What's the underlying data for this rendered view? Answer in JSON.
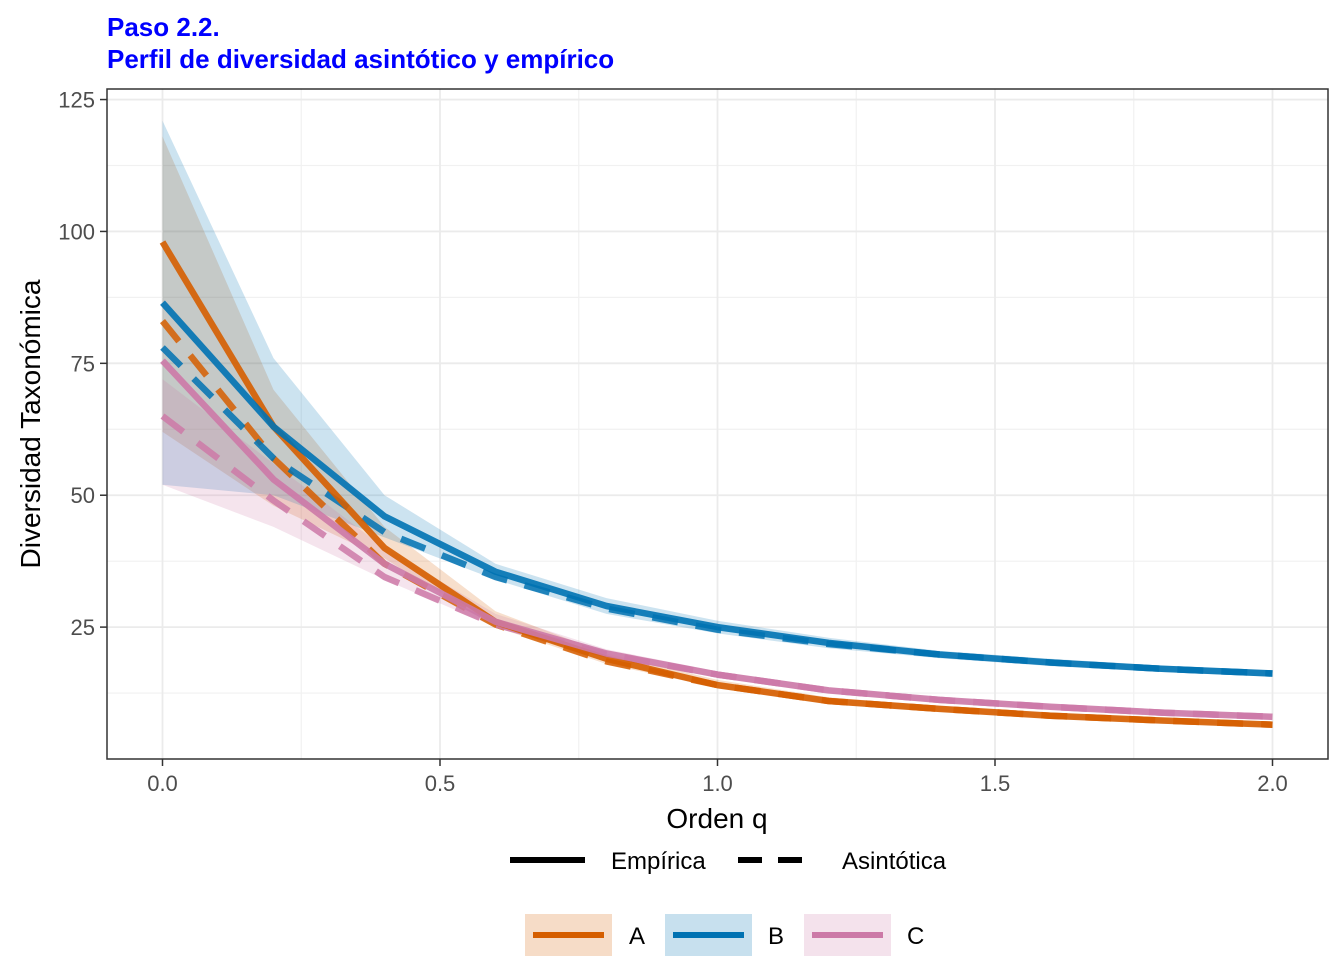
{
  "chart_data": {
    "type": "line",
    "title": "Paso 2.2.",
    "subtitle": "Perfil de diversidad asintótico y empírico",
    "xlabel": "Orden q",
    "ylabel": "Diversidad Taxonómica",
    "xlim": [
      -0.1,
      2.1
    ],
    "ylim": [
      0,
      127
    ],
    "x_ticks": [
      0.0,
      0.5,
      1.0,
      1.5,
      2.0
    ],
    "x_tick_labels": [
      "0.0",
      "0.5",
      "1.0",
      "1.5",
      "2.0"
    ],
    "y_ticks": [
      25,
      50,
      75,
      100,
      125
    ],
    "y_tick_labels": [
      "25",
      "50",
      "75",
      "100",
      "125"
    ],
    "grid": true,
    "legend_linetype": {
      "placement": "bottom",
      "entries": [
        {
          "label": "Empírica",
          "dash": "solid"
        },
        {
          "label": "Asintótica",
          "dash": "dashed"
        }
      ]
    },
    "legend_group": {
      "placement": "bottom",
      "entries": [
        "A",
        "B",
        "C"
      ]
    },
    "x": [
      0.0,
      0.2,
      0.4,
      0.6,
      0.8,
      1.0,
      1.2,
      1.4,
      1.6,
      1.8,
      2.0
    ],
    "series": [
      {
        "name": "A",
        "kind": "empirica",
        "color": "#D55E00",
        "values": [
          98,
          63,
          40,
          26,
          19,
          14,
          11,
          9.5,
          8.2,
          7.3,
          6.5
        ]
      },
      {
        "name": "A",
        "kind": "asintotica",
        "color": "#D55E00",
        "values": [
          83,
          57,
          37,
          25.5,
          18.5,
          14,
          11,
          9.5,
          8.2,
          7.3,
          6.5
        ]
      },
      {
        "name": "B",
        "kind": "empirica",
        "color": "#0072B2",
        "values": [
          86.5,
          63,
          46,
          35.5,
          29,
          25,
          22,
          19.8,
          18.3,
          17.1,
          16.2
        ]
      },
      {
        "name": "B",
        "kind": "asintotica",
        "color": "#0072B2",
        "values": [
          78,
          57,
          43,
          34.5,
          28.5,
          24.5,
          21.8,
          19.8,
          18.3,
          17.1,
          16.2
        ]
      },
      {
        "name": "C",
        "kind": "empirica",
        "color": "#CC79A7",
        "values": [
          75.5,
          53,
          37,
          26,
          20,
          16,
          13,
          11.2,
          9.9,
          8.8,
          8.0
        ]
      },
      {
        "name": "C",
        "kind": "asintotica",
        "color": "#CC79A7",
        "values": [
          65,
          49,
          34.5,
          25.5,
          19.8,
          16,
          13,
          11.2,
          9.9,
          8.8,
          8.0
        ]
      }
    ],
    "bands": [
      {
        "name": "A",
        "color": "#D55E00",
        "lower": [
          62,
          48,
          38,
          25,
          18,
          13.5,
          10.5,
          9,
          7.8,
          6.9,
          6.1
        ],
        "upper": [
          118,
          70,
          44,
          28,
          20,
          15,
          11.7,
          10,
          8.6,
          7.7,
          6.9
        ]
      },
      {
        "name": "B",
        "color": "#0072B2",
        "lower": [
          52,
          50,
          42,
          34,
          27.5,
          23.8,
          21,
          19.1,
          17.6,
          16.5,
          15.6
        ]
      },
      {
        "name": "C",
        "color": "#CC79A7",
        "lower": [
          52,
          44,
          34,
          25,
          19.2,
          15.4,
          12.5,
          10.8,
          9.5,
          8.4,
          7.6
        ],
        "upper": [
          72,
          56,
          40,
          27.5,
          20.8,
          16.6,
          13.5,
          11.6,
          10.3,
          9.2,
          8.4
        ]
      }
    ]
  }
}
